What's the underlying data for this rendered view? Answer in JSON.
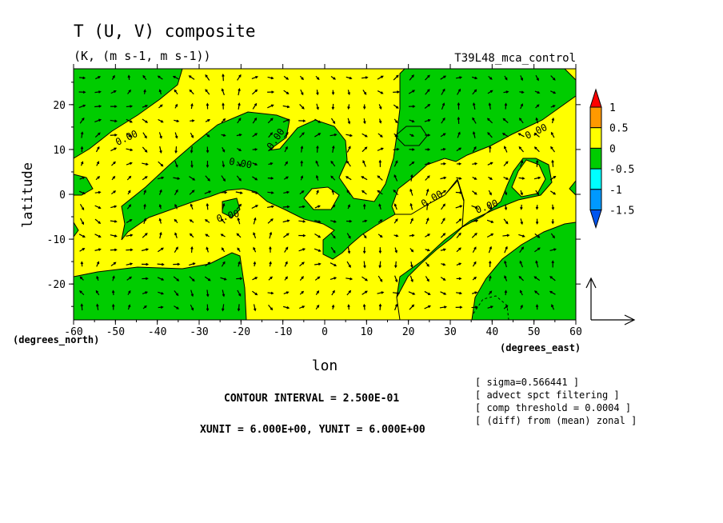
{
  "header": {
    "title": "T (U, V) composite",
    "units": "(K, (m s-1, m s-1))",
    "run": "T39L48_mca_control"
  },
  "chart_data": {
    "type": "heatmap",
    "xlabel": "lon",
    "ylabel": "latitude",
    "xunit_label": "(degrees_east)",
    "yunit_label": "(degrees_north)",
    "xlim": [
      -60,
      60
    ],
    "ylim": [
      -28,
      28
    ],
    "x_ticks": [
      "-60",
      "-50",
      "-40",
      "-30",
      "-20",
      "-10",
      "0",
      "10",
      "20",
      "30",
      "40",
      "50",
      "60"
    ],
    "y_ticks": [
      "20",
      "10",
      "0",
      "-10",
      "-20"
    ],
    "contour_label": "0.00",
    "colorbar": {
      "labels": [
        "1",
        "0.5",
        "0",
        "-0.5",
        "-1",
        "-1.5"
      ],
      "colors": [
        "#ff0000",
        "#ff9900",
        "#ffff00",
        "#00cc00",
        "#00ffff",
        "#0099ff",
        "#0055ee"
      ]
    },
    "field_colors": {
      "positive": "#ffff00",
      "negative": "#00cc00"
    }
  },
  "footer": {
    "contour_interval": "CONTOUR INTERVAL = 2.500E-01",
    "vector_units": "XUNIT = 6.000E+00, YUNIT = 6.000E+00",
    "notes": [
      "[ sigma=0.566441 ]",
      "[ advect spct filtering ]",
      "[ comp threshold = 0.0004 ]",
      "[ (diff) from (mean) zonal ]"
    ]
  }
}
